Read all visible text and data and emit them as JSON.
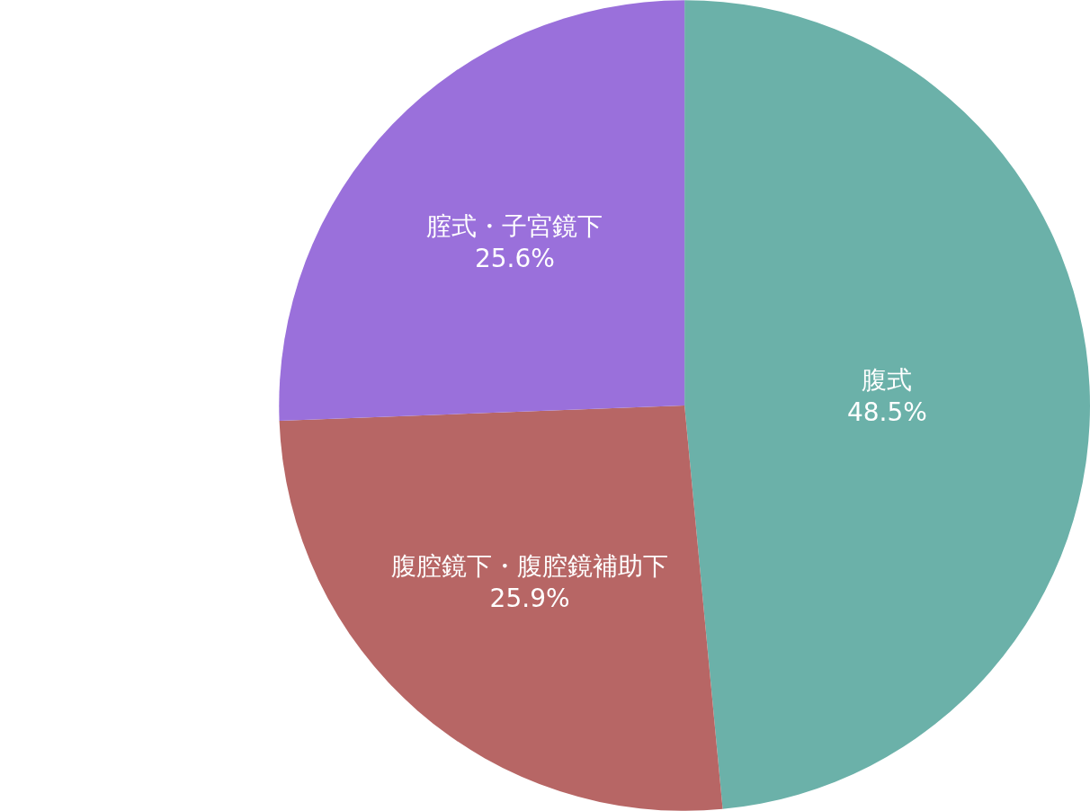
{
  "chart_data": {
    "type": "pie",
    "categories": [
      "腹式",
      "腹腔鏡下・腹腔鏡補助下",
      "腟式・子宮鏡下"
    ],
    "values": [
      48.5,
      25.9,
      25.6
    ],
    "value_labels": [
      "48.5%",
      "25.9%",
      "25.6%"
    ],
    "colors": [
      "#6bb1a9",
      "#b76665",
      "#9a70db"
    ],
    "legend": false
  }
}
